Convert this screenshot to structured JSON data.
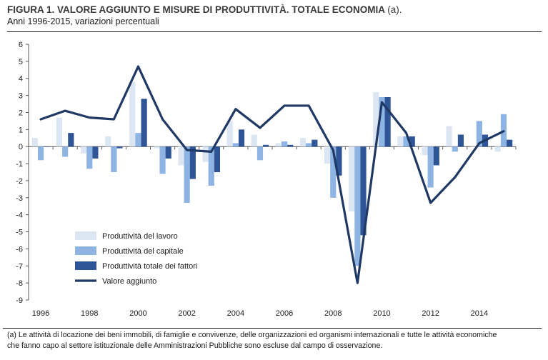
{
  "title": {
    "main": "FIGURA 1. VALORE AGGIUNTO E MISURE DI PRODUTTIVITÀ. TOTALE ECONOMIA",
    "suffix": "(a).",
    "subtitle": "Anni 1996-2015, variazioni percentuali"
  },
  "footnote": {
    "line1": "(a) Le attività di locazione dei beni immobili, di famiglie e convivenze, delle organizzazioni ed organismi internazionali e tutte le attività economiche",
    "line2": "che fanno capo al settore istituzionale delle Amministrazioni Pubbliche sono escluse dal campo di osservazione."
  },
  "chart_data": {
    "type": "bar",
    "x": [
      1996,
      1997,
      1998,
      1999,
      2000,
      2001,
      2002,
      2003,
      2004,
      2005,
      2006,
      2007,
      2008,
      2009,
      2010,
      2011,
      2012,
      2013,
      2014,
      2015
    ],
    "x_tick_labels": [
      "1996",
      "1998",
      "2000",
      "2002",
      "2004",
      "2006",
      "2008",
      "2010",
      "2012",
      "2014"
    ],
    "ylim": [
      -9,
      6
    ],
    "y_ticks": [
      6,
      5,
      4,
      3,
      2,
      1,
      0,
      -1,
      -2,
      -3,
      -4,
      -5,
      -6,
      -7,
      -8,
      -9
    ],
    "grid": false,
    "legend_position": "lower-left",
    "series": [
      {
        "name": "Produttività del lavoro",
        "kind": "bar",
        "color": "#dce6f2",
        "values": [
          0.5,
          1.7,
          -0.4,
          0.6,
          3.8,
          -0.1,
          -1.1,
          -0.9,
          1.5,
          0.7,
          0.2,
          0.5,
          -1.0,
          -3.8,
          3.2,
          0.6,
          -0.5,
          1.2,
          0.0,
          -0.3
        ]
      },
      {
        "name": "Produttività del capitale",
        "kind": "bar",
        "color": "#8eb4e3",
        "values": [
          -0.8,
          -0.6,
          -1.3,
          -1.5,
          0.8,
          -1.6,
          -3.3,
          -2.3,
          0.2,
          -0.8,
          0.3,
          0.2,
          -3.0,
          -7.0,
          2.9,
          0.6,
          -2.4,
          -0.3,
          1.5,
          1.9
        ]
      },
      {
        "name": "Produttività totale dei fattori",
        "kind": "bar",
        "color": "#2f5597",
        "values": [
          0.0,
          0.8,
          -0.7,
          -0.1,
          2.8,
          -0.7,
          -1.9,
          -1.5,
          1.0,
          0.1,
          0.1,
          0.4,
          -1.7,
          -5.2,
          2.9,
          0.6,
          -1.1,
          0.7,
          0.7,
          0.4
        ]
      },
      {
        "name": "Valore aggiunto",
        "kind": "line",
        "color": "#1f3864",
        "values": [
          1.6,
          2.1,
          1.7,
          1.6,
          4.7,
          1.6,
          -0.2,
          -0.3,
          2.2,
          1.1,
          2.4,
          2.4,
          -0.2,
          -8.0,
          2.6,
          0.8,
          -3.3,
          -1.8,
          0.2,
          0.9
        ]
      }
    ]
  }
}
